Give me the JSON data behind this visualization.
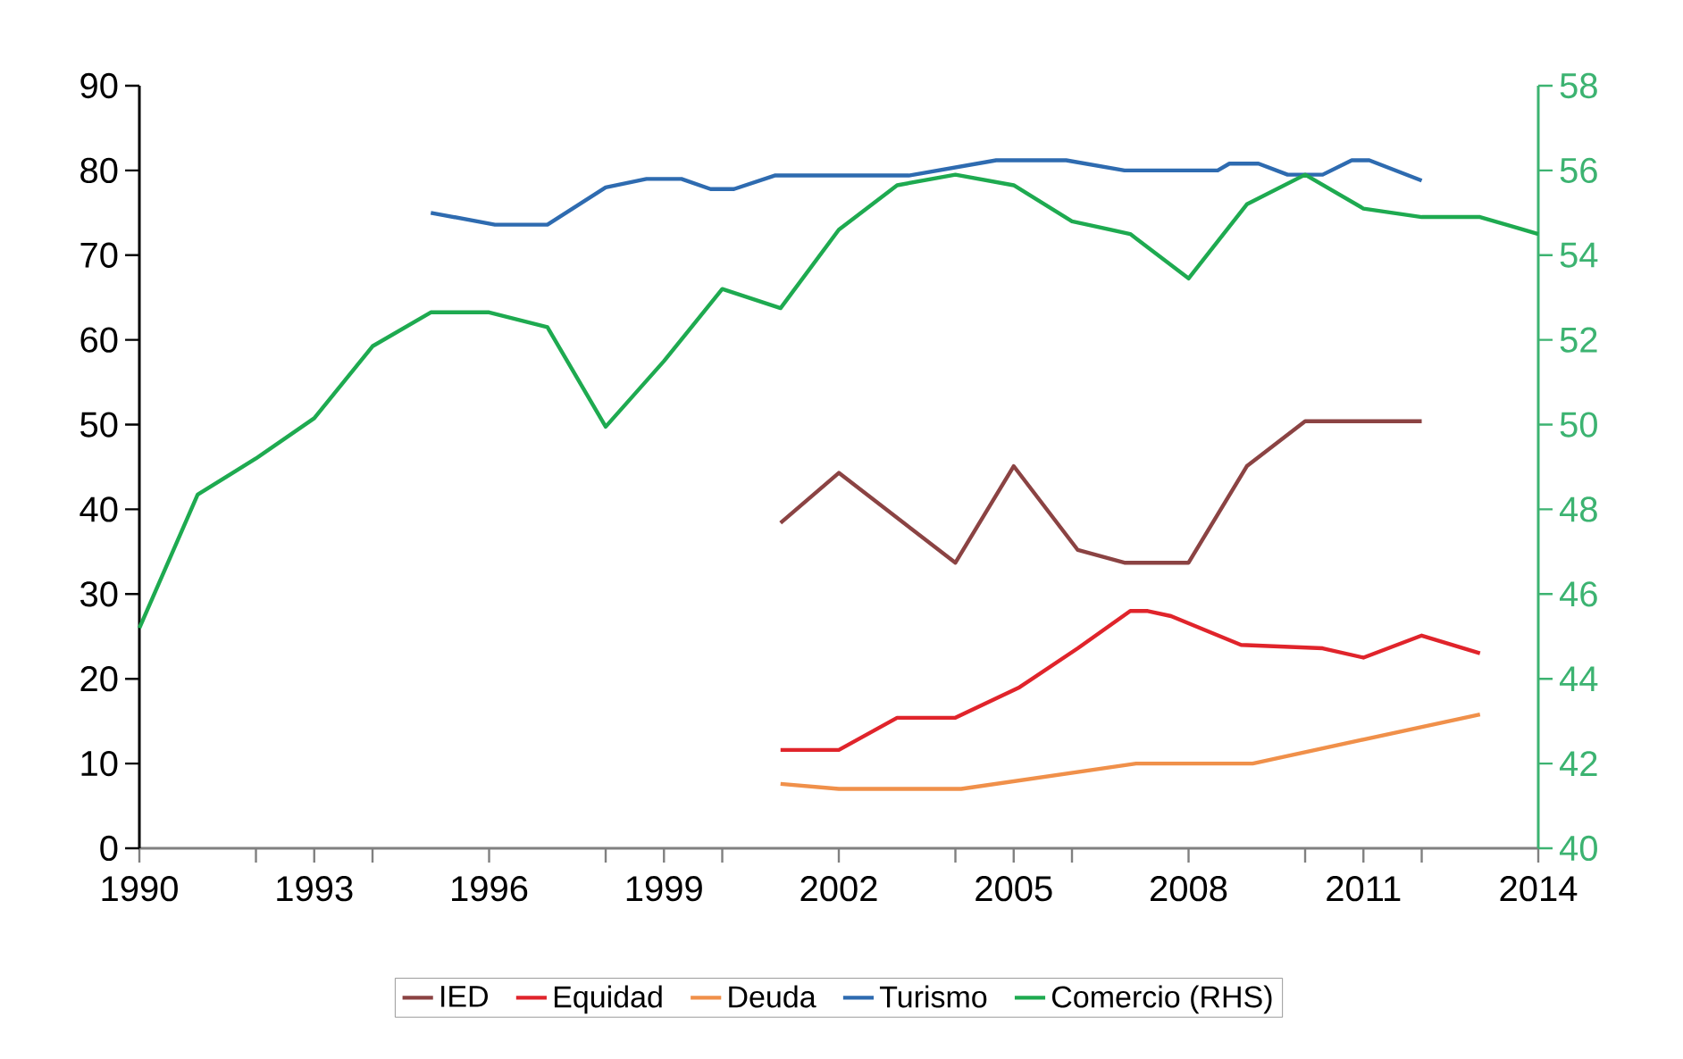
{
  "chart_data": {
    "type": "line",
    "legend": "bottom",
    "grid": false,
    "marker": "none",
    "line_style": "solid",
    "xlim": [
      1990,
      2014
    ],
    "xticks": [
      1990,
      {
        "value": 1992,
        "label": null
      },
      1993,
      {
        "value": 1994,
        "label": null
      },
      1996,
      {
        "value": 1998,
        "label": null
      },
      1999,
      {
        "value": 2000,
        "label": null
      },
      2002,
      {
        "value": 2004,
        "label": null
      },
      2005,
      {
        "value": 2006,
        "label": null
      },
      2008,
      {
        "value": 2010,
        "label": null
      },
      2011,
      {
        "value": 2012,
        "label": null
      },
      2014
    ],
    "ylim": [
      0,
      90
    ],
    "yticks": [
      0,
      10,
      20,
      30,
      40,
      50,
      60,
      70,
      80,
      90
    ],
    "y2lim": [
      40,
      58
    ],
    "y2ticks": [
      40,
      42,
      44,
      46,
      48,
      50,
      52,
      54,
      56,
      58
    ],
    "series": [
      {
        "name": "IED",
        "color": "#8b4343",
        "x": [
          2001,
          2002,
          2004,
          2005,
          2006.1,
          2006.9,
          2008,
          2009,
          2010,
          2012
        ],
        "values": [
          38.4,
          44.3,
          33.7,
          45.1,
          35.2,
          33.7,
          33.7,
          45.1,
          50.4,
          50.4
        ]
      },
      {
        "name": "Equidad",
        "color": "#e0242b",
        "x": [
          2001,
          2002,
          2003,
          2004,
          2005.1,
          2006.1,
          2007,
          2007.3,
          2007.7,
          2008.9,
          2010.3,
          2011,
          2012,
          2013
        ],
        "values": [
          11.6,
          11.6,
          15.4,
          15.4,
          19.0,
          23.6,
          28.0,
          28.0,
          27.4,
          24.0,
          23.6,
          22.5,
          25.1,
          23.0
        ]
      },
      {
        "name": "Deuda",
        "color": "#f0904a",
        "x": [
          2001,
          2002,
          2004.1,
          2007.1,
          2009.1,
          2013
        ],
        "values": [
          7.6,
          7.0,
          7.0,
          10.0,
          10.0,
          15.8
        ]
      },
      {
        "name": "Turismo",
        "color": "#2e6bb0",
        "x": [
          1995,
          1996.1,
          1997,
          1998,
          1998.7,
          1999.3,
          1999.8,
          2000.2,
          2000.9,
          2003.2,
          2004.7,
          2005.9,
          2006.9,
          2008.5,
          2008.7,
          2009.2,
          2009.7,
          2010.3,
          2010.8,
          2011.1,
          2012
        ],
        "values": [
          75.0,
          73.6,
          73.6,
          78.0,
          79.0,
          79.0,
          77.8,
          77.8,
          79.4,
          79.4,
          81.2,
          81.2,
          80.0,
          80.0,
          80.8,
          80.8,
          79.5,
          79.5,
          81.2,
          81.2,
          78.8
        ]
      },
      {
        "name": "Comercio (RHS)",
        "color": "#1eaa50",
        "axis": "y2",
        "x": [
          1990,
          1991,
          1992,
          1993,
          1994,
          1995,
          1996,
          1997,
          1998,
          1999,
          2000,
          2001,
          2002,
          2003,
          2004,
          2005,
          2006,
          2007,
          2008,
          2009,
          2010,
          2011,
          2012,
          2013,
          2014
        ],
        "values": [
          45.2,
          48.35,
          49.2,
          50.15,
          51.85,
          52.65,
          52.65,
          52.3,
          49.95,
          51.5,
          53.2,
          52.75,
          54.6,
          55.65,
          55.9,
          55.65,
          54.8,
          54.5,
          53.45,
          55.2,
          55.9,
          55.1,
          54.9,
          54.9,
          54.5
        ]
      }
    ]
  }
}
